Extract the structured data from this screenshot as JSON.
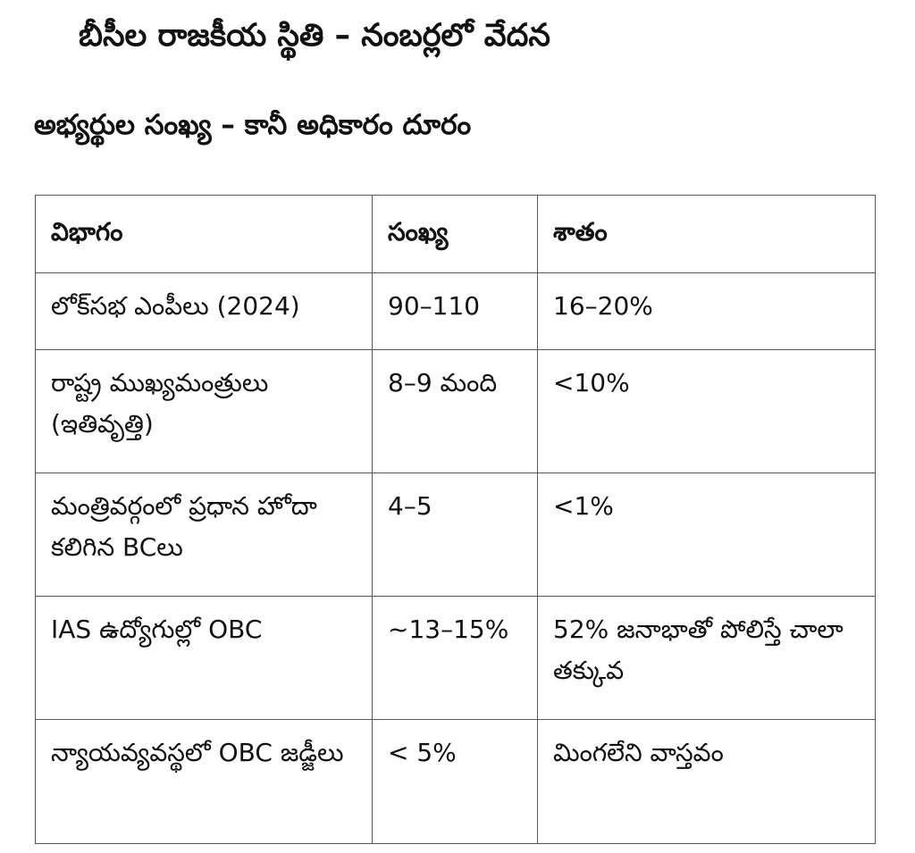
{
  "title": "బీసీల రాజకీయ స్థితి – నంబర్లలో వేదన",
  "subtitle": "అభ్యర్థుల సంఖ్య – కానీ అధికారం దూరం",
  "table": {
    "headers": [
      "విభాగం",
      "సంఖ్య",
      "శాతం"
    ],
    "rows": [
      [
        "లోక్‌సభ ఎంపీలు (2024)",
        "90–110",
        "16–20%"
      ],
      [
        "రాష్ట్ర ముఖ్యమంత్రులు (ఇతివృత్తి)",
        "8–9 మంది",
        "<10%"
      ],
      [
        "మంత్రివర్గంలో ప్రధాన హోదా కలిగిన BCలు",
        "4–5",
        "<1%"
      ],
      [
        "IAS ఉద్యోగుల్లో OBC",
        "~13–15%",
        "52% జనాభాతో పోలిస్తే చాలా తక్కువ"
      ],
      [
        "న్యాయవ్యవస్థలో OBC జడ్జీలు",
        "< 5%",
        "మింగలేని వాస్తవం"
      ]
    ]
  }
}
